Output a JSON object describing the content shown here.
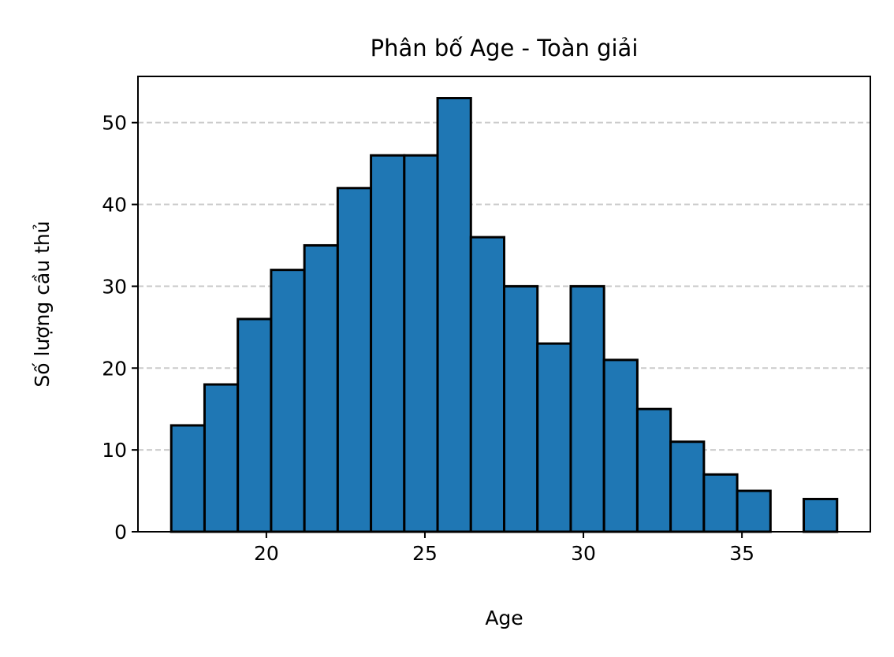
{
  "chart_data": {
    "type": "bar",
    "title": "Phân bố Age - Toàn giải",
    "xlabel": "Age",
    "ylabel": "Số lượng cầu thủ",
    "bin_start": 17,
    "bin_width": 1.05,
    "counts": [
      13,
      18,
      26,
      32,
      35,
      42,
      46,
      46,
      53,
      36,
      30,
      23,
      30,
      21,
      15,
      11,
      7,
      5,
      0,
      4
    ],
    "x_ticks": [
      "20",
      "25",
      "30",
      "35"
    ],
    "x_tick_values": [
      20,
      25,
      30,
      35
    ],
    "y_ticks": [
      "0",
      "10",
      "20",
      "30",
      "40",
      "50"
    ],
    "y_tick_values": [
      0,
      10,
      20,
      30,
      40,
      50
    ],
    "xlim": [
      15.95,
      39.05
    ],
    "ylim": [
      0,
      55.65
    ],
    "grid": "y-dashed",
    "bar_color": "#1f77b4",
    "edge_color": "#000000",
    "grid_color": "#cccccc"
  }
}
